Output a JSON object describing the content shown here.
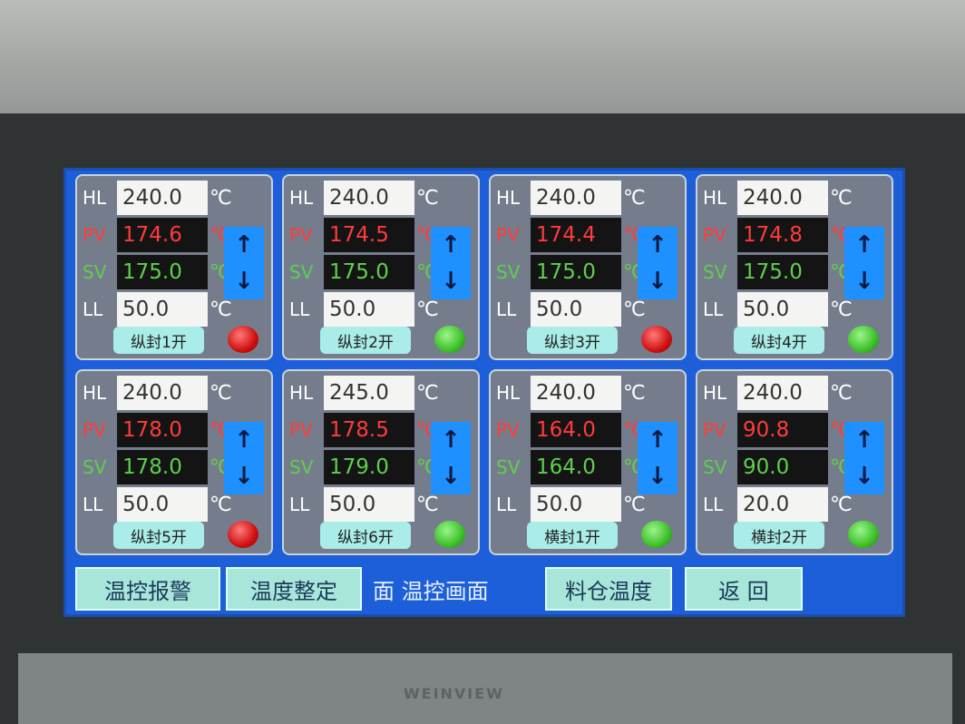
{
  "brand": "WEINVIEW",
  "unit": "℃",
  "labels": {
    "hl": "HL",
    "pv": "PV",
    "sv": "SV",
    "ll": "LL"
  },
  "arrows": {
    "up": "↑",
    "down": "↓"
  },
  "zones": [
    {
      "name": "纵封1开",
      "hl": "240.0",
      "pv": "174.6",
      "sv": "175.0",
      "ll": "50.0",
      "lamp": "red"
    },
    {
      "name": "纵封2开",
      "hl": "240.0",
      "pv": "174.5",
      "sv": "175.0",
      "ll": "50.0",
      "lamp": "green"
    },
    {
      "name": "纵封3开",
      "hl": "240.0",
      "pv": "174.4",
      "sv": "175.0",
      "ll": "50.0",
      "lamp": "red"
    },
    {
      "name": "纵封4开",
      "hl": "240.0",
      "pv": "174.8",
      "sv": "175.0",
      "ll": "50.0",
      "lamp": "green"
    },
    {
      "name": "纵封5开",
      "hl": "240.0",
      "pv": "178.0",
      "sv": "178.0",
      "ll": "50.0",
      "lamp": "red"
    },
    {
      "name": "纵封6开",
      "hl": "245.0",
      "pv": "178.5",
      "sv": "179.0",
      "ll": "50.0",
      "lamp": "green"
    },
    {
      "name": "横封1开",
      "hl": "240.0",
      "pv": "164.0",
      "sv": "164.0",
      "ll": "50.0",
      "lamp": "green"
    },
    {
      "name": "横封2开",
      "hl": "240.0",
      "pv": "90.8",
      "sv": "90.0",
      "ll": "20.0",
      "lamp": "green"
    }
  ],
  "bottom": {
    "alarm": "温控报警",
    "tuning": "温度整定",
    "title": "面  温控画面",
    "hopper": "料仓温度",
    "back": "返 回"
  },
  "colors": {
    "screen": "#1c5fd8",
    "pv": "#ff3b3b",
    "sv": "#5fcf4e",
    "lamp_red": "#d01010",
    "lamp_green": "#3cc02a"
  }
}
